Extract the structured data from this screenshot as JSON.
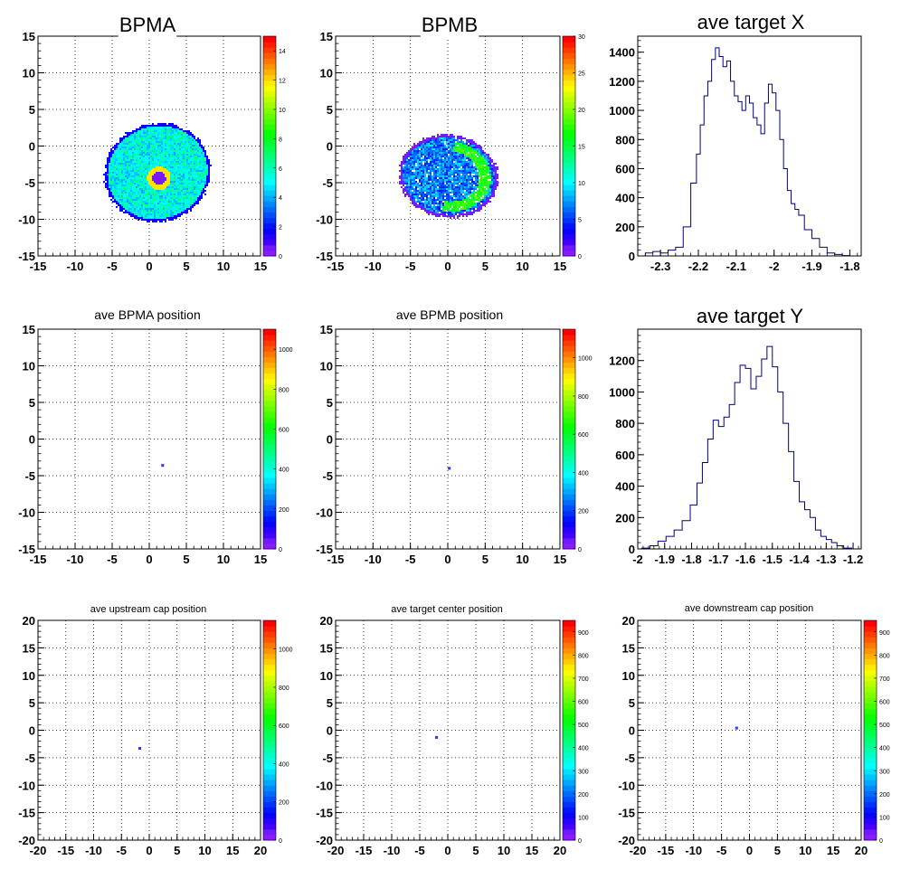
{
  "chart_data": [
    {
      "id": "bpma",
      "type": "heatmap",
      "title": "BPMA",
      "xlim": [
        -15,
        15
      ],
      "ylim": [
        -15,
        15
      ],
      "xticks": [
        -15,
        -10,
        -5,
        0,
        5,
        10,
        15
      ],
      "yticks": [
        -15,
        -10,
        -5,
        0,
        5,
        10,
        15
      ],
      "zlim": [
        0,
        15
      ],
      "zticks": [
        0,
        2,
        4,
        6,
        8,
        10,
        12,
        14
      ],
      "grid": true,
      "palette": "rainbow",
      "distribution": {
        "shape": "blob",
        "center": [
          1,
          -3.5
        ],
        "radius": [
          7,
          6.5
        ],
        "rotation_deg": 20,
        "level": 0.35,
        "hot_spot": [
          1.2,
          -4.3
        ]
      }
    },
    {
      "id": "bpmb",
      "type": "heatmap",
      "title": "BPMB",
      "xlim": [
        -15,
        15
      ],
      "ylim": [
        -15,
        15
      ],
      "xticks": [
        -15,
        -10,
        -5,
        0,
        5,
        10,
        15
      ],
      "yticks": [
        -15,
        -10,
        -5,
        0,
        5,
        10,
        15
      ],
      "zlim": [
        0,
        30
      ],
      "zticks": [
        0,
        5,
        10,
        15,
        20,
        25,
        30
      ],
      "grid": true,
      "palette": "rainbow",
      "distribution": {
        "shape": "blob",
        "center": [
          0,
          -4
        ],
        "radius": [
          6.5,
          5.5
        ],
        "rotation_deg": -10,
        "level": 0.22,
        "ring": true
      }
    },
    {
      "id": "targetx",
      "type": "histogram",
      "title": "ave target X",
      "xlim": [
        -2.36,
        -1.77
      ],
      "ylim": [
        0,
        1510
      ],
      "xticks": [
        -2.3,
        -2.2,
        -2.1,
        -2,
        -1.9,
        -1.8
      ],
      "yticks": [
        0,
        200,
        400,
        600,
        800,
        1000,
        1200,
        1400
      ],
      "grid": false,
      "x": [
        -2.33,
        -2.31,
        -2.29,
        -2.27,
        -2.25,
        -2.23,
        -2.21,
        -2.2,
        -2.19,
        -2.18,
        -2.17,
        -2.16,
        -2.15,
        -2.14,
        -2.13,
        -2.12,
        -2.11,
        -2.1,
        -2.09,
        -2.08,
        -2.07,
        -2.06,
        -2.05,
        -2.04,
        -2.03,
        -2.02,
        -2.01,
        -2.0,
        -1.99,
        -1.98,
        -1.97,
        -1.96,
        -1.95,
        -1.94,
        -1.93,
        -1.91,
        -1.89,
        -1.87,
        -1.85,
        -1.83,
        -1.81
      ],
      "y": [
        20,
        30,
        20,
        40,
        60,
        200,
        500,
        700,
        900,
        1100,
        1200,
        1350,
        1430,
        1370,
        1300,
        1340,
        1200,
        1100,
        1060,
        1000,
        1100,
        1050,
        950,
        900,
        840,
        1050,
        1180,
        1120,
        1000,
        800,
        600,
        450,
        360,
        320,
        280,
        180,
        120,
        60,
        20,
        10,
        2
      ]
    },
    {
      "id": "bpmapos",
      "type": "heatmap",
      "title": "ave BPMA position",
      "xlim": [
        -15,
        15
      ],
      "ylim": [
        -15,
        15
      ],
      "xticks": [
        -15,
        -10,
        -5,
        0,
        5,
        10,
        15
      ],
      "yticks": [
        -15,
        -10,
        -5,
        0,
        5,
        10,
        15
      ],
      "zlim": [
        0,
        1100
      ],
      "zticks": [
        0,
        200,
        400,
        600,
        800,
        1000
      ],
      "grid": true,
      "palette": "rainbow",
      "distribution": {
        "shape": "dot",
        "center": [
          1.8,
          -3.6
        ]
      }
    },
    {
      "id": "bpmbpos",
      "type": "heatmap",
      "title": "ave BPMB position",
      "xlim": [
        -15,
        15
      ],
      "ylim": [
        -15,
        15
      ],
      "xticks": [
        -15,
        -10,
        -5,
        0,
        5,
        10,
        15
      ],
      "yticks": [
        -15,
        -10,
        -5,
        0,
        5,
        10,
        15
      ],
      "zlim": [
        0,
        1150
      ],
      "zticks": [
        0,
        200,
        400,
        600,
        800,
        1000
      ],
      "grid": true,
      "palette": "rainbow",
      "distribution": {
        "shape": "dot",
        "center": [
          0.2,
          -4.0
        ]
      }
    },
    {
      "id": "targety",
      "type": "histogram",
      "title": "ave target Y",
      "xlim": [
        -2.0,
        -1.17
      ],
      "ylim": [
        0,
        1400
      ],
      "xticks": [
        -2,
        -1.9,
        -1.8,
        -1.7,
        -1.6,
        -1.5,
        -1.4,
        -1.3,
        -1.2
      ],
      "yticks": [
        0,
        200,
        400,
        600,
        800,
        1000,
        1200
      ],
      "grid": false,
      "x": [
        -1.97,
        -1.94,
        -1.91,
        -1.88,
        -1.85,
        -1.82,
        -1.79,
        -1.77,
        -1.75,
        -1.73,
        -1.71,
        -1.69,
        -1.67,
        -1.65,
        -1.63,
        -1.61,
        -1.59,
        -1.57,
        -1.55,
        -1.53,
        -1.51,
        -1.49,
        -1.47,
        -1.45,
        -1.43,
        -1.41,
        -1.39,
        -1.37,
        -1.35,
        -1.33,
        -1.31,
        -1.29,
        -1.27,
        -1.25,
        -1.22
      ],
      "y": [
        5,
        20,
        50,
        80,
        120,
        180,
        280,
        420,
        550,
        700,
        820,
        780,
        840,
        920,
        1060,
        1170,
        1150,
        1020,
        1100,
        1210,
        1290,
        1160,
        1000,
        800,
        620,
        430,
        300,
        250,
        200,
        120,
        80,
        60,
        40,
        20,
        5
      ]
    },
    {
      "id": "upcap",
      "type": "heatmap",
      "title": "ave upstream cap position",
      "xlim": [
        -20,
        20
      ],
      "ylim": [
        -20,
        20
      ],
      "xticks": [
        -20,
        -15,
        -10,
        -5,
        0,
        5,
        10,
        15,
        20
      ],
      "yticks": [
        -20,
        -15,
        -10,
        -5,
        0,
        5,
        10,
        15,
        20
      ],
      "zlim": [
        0,
        1150
      ],
      "zticks": [
        0,
        200,
        400,
        600,
        800,
        1000
      ],
      "grid": true,
      "palette": "rainbow",
      "distribution": {
        "shape": "dot",
        "center": [
          -1.7,
          -3.3
        ]
      }
    },
    {
      "id": "tgtcenter",
      "type": "heatmap",
      "title": "ave target center  position",
      "xlim": [
        -20,
        20
      ],
      "ylim": [
        -20,
        20
      ],
      "xticks": [
        -20,
        -15,
        -10,
        -5,
        0,
        5,
        10,
        15,
        20
      ],
      "yticks": [
        -20,
        -15,
        -10,
        -5,
        0,
        5,
        10,
        15,
        20
      ],
      "zlim": [
        0,
        950
      ],
      "zticks": [
        0,
        100,
        200,
        300,
        400,
        500,
        600,
        700,
        800,
        900
      ],
      "grid": true,
      "palette": "rainbow",
      "distribution": {
        "shape": "dot",
        "center": [
          -2.0,
          -1.3
        ]
      }
    },
    {
      "id": "downcap",
      "type": "heatmap",
      "title": "ave downstream cap position",
      "xlim": [
        -20,
        20
      ],
      "ylim": [
        -20,
        20
      ],
      "xticks": [
        -20,
        -15,
        -10,
        -5,
        0,
        5,
        10,
        15,
        20
      ],
      "yticks": [
        -20,
        -15,
        -10,
        -5,
        0,
        5,
        10,
        15,
        20
      ],
      "zlim": [
        0,
        950
      ],
      "zticks": [
        0,
        100,
        200,
        300,
        400,
        500,
        600,
        700,
        800,
        900
      ],
      "grid": true,
      "palette": "rainbow",
      "distribution": {
        "shape": "dot",
        "center": [
          -2.3,
          0.4
        ]
      }
    }
  ]
}
